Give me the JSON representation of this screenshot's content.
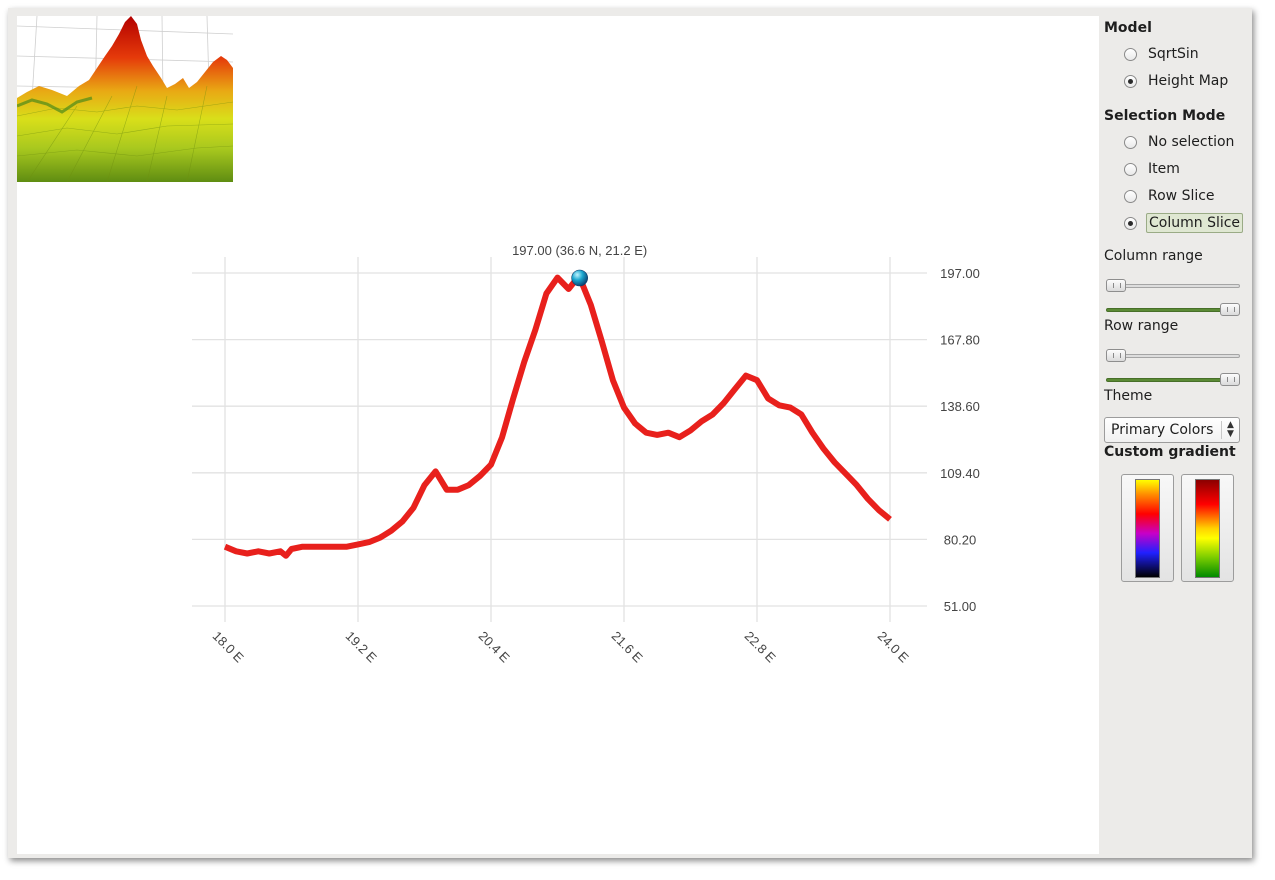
{
  "panel": {
    "model": {
      "title": "Model",
      "options": [
        {
          "label": "SqrtSin",
          "checked": false
        },
        {
          "label": "Height Map",
          "checked": true
        }
      ]
    },
    "selection_mode": {
      "title": "Selection Mode",
      "options": [
        {
          "label": "No selection",
          "checked": false
        },
        {
          "label": "Item",
          "checked": false
        },
        {
          "label": "Row Slice",
          "checked": false
        },
        {
          "label": "Column Slice",
          "checked": true
        }
      ]
    },
    "column_range": {
      "label": "Column range"
    },
    "row_range": {
      "label": "Row range"
    },
    "theme": {
      "label": "Theme",
      "value": "Primary Colors"
    },
    "custom_gradient": {
      "label": "Custom gradient"
    }
  },
  "chart_data": {
    "type": "line",
    "series_color": "#e8201c",
    "x_ticks": [
      "18.0 E",
      "19.2 E",
      "20.4 E",
      "21.6 E",
      "22.8 E",
      "24.0 E"
    ],
    "y_ticks": [
      "197.00",
      "167.80",
      "138.60",
      "109.40",
      "80.20",
      "51.00"
    ],
    "xlim": [
      18.0,
      24.0
    ],
    "ylim": [
      51.0,
      197.0
    ],
    "selection_label": "197.00 (36.6 N, 21.2 E)",
    "selection_point": {
      "x": 21.2,
      "y": 197.0
    },
    "x": [
      18.0,
      18.1,
      18.2,
      18.3,
      18.4,
      18.5,
      18.55,
      18.6,
      18.7,
      18.8,
      19.0,
      19.1,
      19.2,
      19.3,
      19.4,
      19.5,
      19.6,
      19.7,
      19.8,
      19.9,
      20.0,
      20.1,
      20.2,
      20.3,
      20.4,
      20.5,
      20.6,
      20.7,
      20.8,
      20.9,
      21.0,
      21.1,
      21.15,
      21.2,
      21.3,
      21.4,
      21.5,
      21.6,
      21.7,
      21.8,
      21.9,
      22.0,
      22.1,
      22.2,
      22.3,
      22.4,
      22.5,
      22.6,
      22.7,
      22.8,
      22.9,
      23.0,
      23.1,
      23.2,
      23.3,
      23.4,
      23.5,
      23.6,
      23.7,
      23.8,
      23.9,
      24.0
    ],
    "y": [
      77,
      75,
      74,
      75,
      74,
      75,
      73,
      76,
      77,
      77,
      77,
      77,
      78,
      79,
      81,
      84,
      88,
      94,
      104,
      110,
      102,
      102,
      104,
      108,
      113,
      125,
      142,
      158,
      172,
      188,
      195,
      190,
      193,
      195,
      183,
      167,
      150,
      138,
      131,
      127,
      126,
      127,
      125,
      128,
      132,
      135,
      140,
      146,
      152,
      150,
      142,
      139,
      138,
      135,
      127,
      120,
      114,
      109,
      104,
      98,
      93,
      89
    ]
  }
}
